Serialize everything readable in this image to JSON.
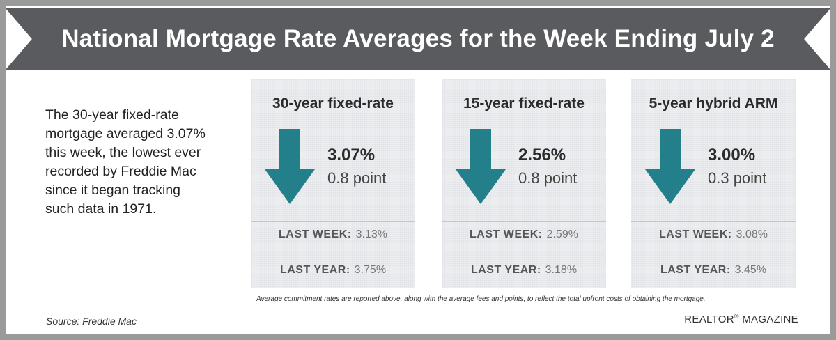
{
  "title": "National Mortgage Rate Averages for the Week Ending July 2",
  "intro": "The 30-year fixed-rate mortgage averaged 3.07% this week, the lowest ever recorded by Freddie Mac since it began tracking such data in 1971.",
  "cards": [
    {
      "title": "30-year fixed-rate",
      "rate": "3.07%",
      "change": "0.8 point",
      "last_week_label": "LAST WEEK:",
      "last_week": "3.13%",
      "last_year_label": "LAST YEAR:",
      "last_year": "3.75%"
    },
    {
      "title": "15-year fixed-rate",
      "rate": "2.56%",
      "change": "0.8 point",
      "last_week_label": "LAST WEEK:",
      "last_week": "2.59%",
      "last_year_label": "LAST YEAR:",
      "last_year": "3.18%"
    },
    {
      "title": "5-year hybrid ARM",
      "rate": "3.00%",
      "change": "0.3 point",
      "last_week_label": "LAST WEEK:",
      "last_week": "3.08%",
      "last_year_label": "LAST YEAR:",
      "last_year": "3.45%"
    }
  ],
  "footnote": "Average commitment rates are reported above, along with the average fees and points, to reflect the total upfront costs of obtaining the mortgage.",
  "source": "Source: Freddie Mac",
  "brand": {
    "name": "REALTOR",
    "mark": "®",
    "suffix": " MAGAZINE"
  },
  "colors": {
    "banner": "#5a5b5e",
    "arrow": "#23808a",
    "frame": "#9a9a9b",
    "card": "#ecedef"
  },
  "icons": {
    "arrow": "down-arrow-icon"
  }
}
